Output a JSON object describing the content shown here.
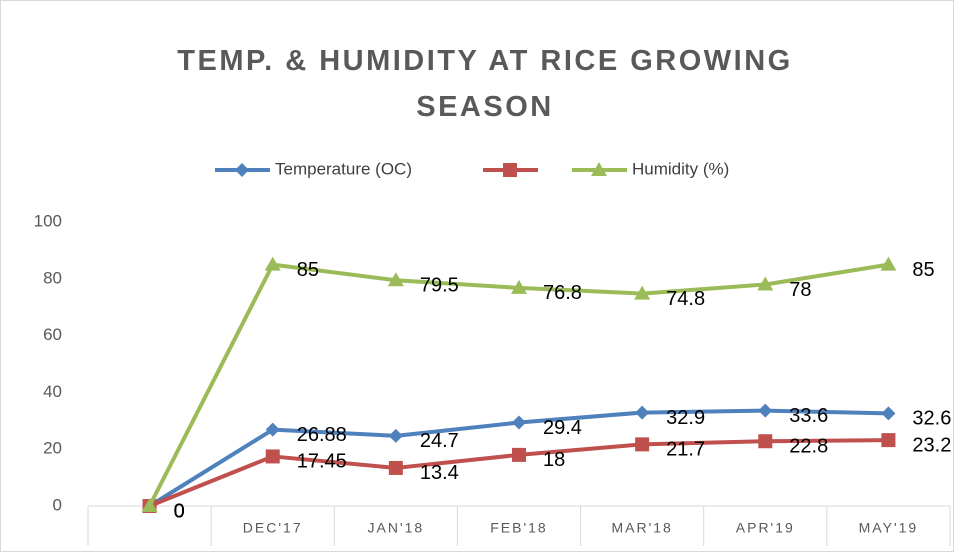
{
  "chart_data": {
    "type": "line",
    "title": "TEMP. & HUMIDITY AT RICE GROWING SEASON",
    "categories": [
      null,
      "DEC'17",
      "JAN'18",
      "FEB'18",
      "MAR'18",
      "APR'19",
      "MAY'19"
    ],
    "series": [
      {
        "name": "Temperature (OC)",
        "color": "#4f81bd",
        "marker": "diamond",
        "values": [
          0,
          26.88,
          24.7,
          29.4,
          32.9,
          33.6,
          32.6
        ]
      },
      {
        "color": "#c0504d",
        "marker": "square",
        "values": [
          0,
          17.45,
          13.4,
          18,
          21.7,
          22.8,
          23.2
        ]
      },
      {
        "name": "Humidity (%)",
        "color": "#9bbb59",
        "marker": "triangle",
        "values": [
          0,
          85,
          79.5,
          76.8,
          74.8,
          78,
          85
        ]
      }
    ],
    "ylim": [
      0,
      100
    ],
    "yticks": [
      0,
      20,
      40,
      60,
      80,
      100
    ],
    "grid": false,
    "legend": "top"
  }
}
